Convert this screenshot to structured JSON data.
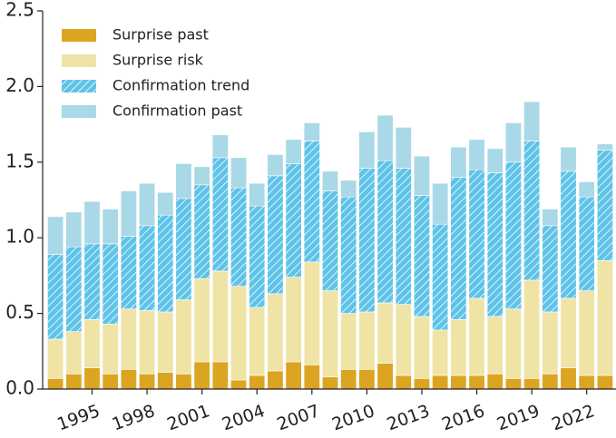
{
  "chart_data": {
    "type": "stacked_bar",
    "categories": [
      null,
      null,
      "1995",
      null,
      null,
      "1998",
      null,
      null,
      "2001",
      null,
      null,
      "2004",
      null,
      null,
      "2007",
      null,
      null,
      "2010",
      null,
      null,
      "2013",
      null,
      null,
      "2016",
      null,
      null,
      "2019",
      null,
      null,
      "2022",
      null
    ],
    "series": [
      {
        "name": "Surprise past",
        "color": "#dba421",
        "hatched": false,
        "values": [
          0.07,
          0.1,
          0.14,
          0.1,
          0.13,
          0.1,
          0.11,
          0.1,
          0.18,
          0.18,
          0.06,
          0.09,
          0.12,
          0.18,
          0.16,
          0.08,
          0.13,
          0.13,
          0.17,
          0.09,
          0.07,
          0.09,
          0.09,
          0.09,
          0.1,
          0.07,
          0.07,
          0.1,
          0.14,
          0.09,
          0.09
        ]
      },
      {
        "name": "Surprise risk",
        "color": "#efe4a6",
        "hatched": false,
        "values": [
          0.26,
          0.28,
          0.32,
          0.33,
          0.4,
          0.42,
          0.4,
          0.49,
          0.55,
          0.6,
          0.62,
          0.45,
          0.51,
          0.56,
          0.68,
          0.57,
          0.37,
          0.38,
          0.4,
          0.47,
          0.41,
          0.3,
          0.37,
          0.51,
          0.38,
          0.46,
          0.65,
          0.41,
          0.46,
          0.56,
          0.76
        ]
      },
      {
        "name": "Confirmation trend",
        "color": "#5ec3e8",
        "hatched": true,
        "values": [
          0.56,
          0.56,
          0.5,
          0.53,
          0.48,
          0.56,
          0.64,
          0.67,
          0.62,
          0.75,
          0.65,
          0.67,
          0.78,
          0.75,
          0.8,
          0.66,
          0.77,
          0.95,
          0.94,
          0.9,
          0.8,
          0.7,
          0.94,
          0.85,
          0.95,
          0.97,
          0.92,
          0.57,
          0.84,
          0.62,
          0.73
        ]
      },
      {
        "name": "Confirmation past",
        "color": "#a9d8e6",
        "hatched": false,
        "values": [
          0.25,
          0.23,
          0.28,
          0.23,
          0.3,
          0.28,
          0.15,
          0.23,
          0.12,
          0.15,
          0.2,
          0.15,
          0.14,
          0.16,
          0.12,
          0.13,
          0.11,
          0.24,
          0.3,
          0.27,
          0.26,
          0.27,
          0.2,
          0.2,
          0.16,
          0.26,
          0.26,
          0.11,
          0.16,
          0.1,
          0.04
        ]
      }
    ],
    "ylim": [
      0,
      2.5
    ],
    "yticks": [
      {
        "value": 0,
        "label": "0.0"
      },
      {
        "value": 0.5,
        "label": "0.5"
      },
      {
        "value": 1,
        "label": "1.0"
      },
      {
        "value": 1.5,
        "label": "1.5"
      },
      {
        "value": 2,
        "label": "2.0"
      },
      {
        "value": 2.5,
        "label": "2.5"
      }
    ],
    "legend": "upper left"
  }
}
